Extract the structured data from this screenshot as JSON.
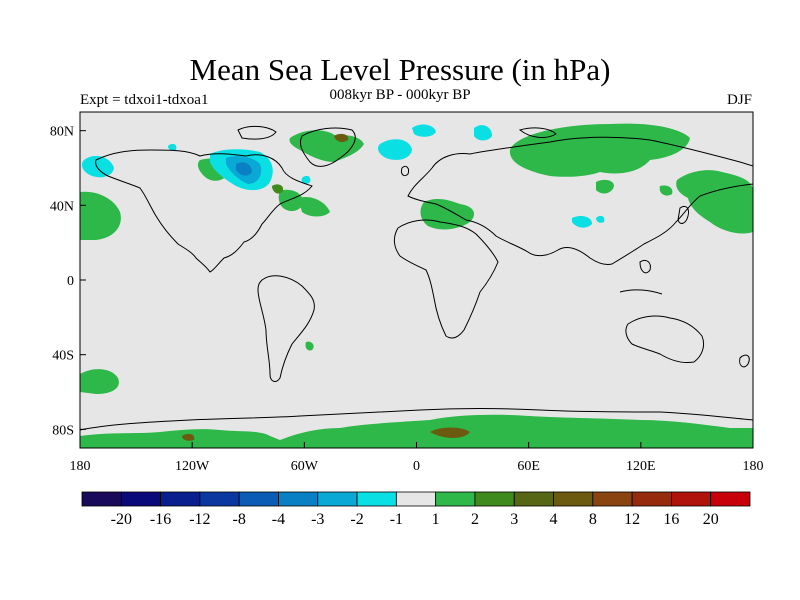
{
  "title": "Mean Sea Level Pressure (in hPa)",
  "subtitle": "008kyr BP - 000kyr BP",
  "left_label": "Expt = tdxoi1-tdxoa1",
  "right_label": "DJF",
  "map": {
    "projection": "cylindrical-equidistant",
    "lon_range": [
      -180,
      180
    ],
    "lat_range": [
      -90,
      90
    ],
    "background_color": "#e6e6e6",
    "x_ticks": [
      "180",
      "120W",
      "60W",
      "0",
      "60E",
      "120E",
      "180"
    ],
    "y_ticks": [
      "80N",
      "40N",
      "0",
      "40S",
      "80S"
    ]
  },
  "colorbar": {
    "labels": [
      "-20",
      "-16",
      "-12",
      "-8",
      "-4",
      "-3",
      "-2",
      "-1",
      "1",
      "2",
      "3",
      "4",
      "8",
      "12",
      "16",
      "20"
    ],
    "colors": [
      "#1a0a5a",
      "#0a0a7a",
      "#0a1f8e",
      "#0a38a0",
      "#0a5cb4",
      "#0a80c4",
      "#0aa8d4",
      "#0ae0e4",
      "#e6e6e6",
      "#2eb84a",
      "#3f8a1c",
      "#566614",
      "#6b5a10",
      "#8a4410",
      "#962a0c",
      "#b0120c",
      "#c8000a"
    ]
  }
}
